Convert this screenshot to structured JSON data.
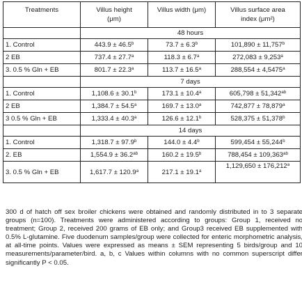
{
  "table": {
    "headers": [
      "Treatments",
      "Villus height (μm)",
      "Villus width (μm)",
      "Villus surface area index (μm²)"
    ],
    "periods": [
      {
        "label": "48 hours",
        "rows": [
          {
            "treatment": "1. Control",
            "height": "443.9 ± 46.5",
            "height_sup": "b",
            "width": "73.7 ± 6.3",
            "width_sup": "b",
            "area": "101,890 ± 11,757",
            "area_sup": "b"
          },
          {
            "treatment": "2 EB",
            "height": "737.4 ± 27.7",
            "height_sup": "a",
            "width": "118.3 ± 6.7",
            "width_sup": "a",
            "area": "272,083 ± 9,253",
            "area_sup": "a"
          },
          {
            "treatment": "3. 0.5 % Gln + EB",
            "height": "801.7 ± 22.3",
            "height_sup": "a",
            "width": "113.7 ± 16.5",
            "width_sup": "a",
            "area": "288,554 ± 4,5475",
            "area_sup": "a"
          }
        ]
      },
      {
        "label": "7 days",
        "rows": [
          {
            "treatment": "1. Control",
            "height": "1,108.6 ± 30.1",
            "height_sup": "b",
            "width": "173.1 ± 10.4",
            "width_sup": "a",
            "area": "605,798 ± 51,342",
            "area_sup": "ab"
          },
          {
            "treatment": "2 EB",
            "height": "1,384.7 ± 54.5",
            "height_sup": "a",
            "width": "169.7 ± 13.0",
            "width_sup": "a",
            "area": "742,877 ± 78,879",
            "area_sup": "a"
          },
          {
            "treatment": "3 0.5 % Gln + EB",
            "height": "1,333.4 ± 40.3",
            "height_sup": "a",
            "width": "126.6 ± 12.1",
            "width_sup": "b",
            "area": "528,375 ± 51,378",
            "area_sup": "b"
          }
        ]
      },
      {
        "label": "14 days",
        "rows": [
          {
            "treatment": "1. Control",
            "height": "1,318.7 ± 97.9",
            "height_sup": "b",
            "width": "144.0 ± 4.4",
            "width_sup": "b",
            "area": "599,454 ± 55,244",
            "area_sup": "b"
          },
          {
            "treatment": "2. EB",
            "height": "1,554.9 ± 36.2",
            "height_sup": "ab",
            "width": "160.2 ± 19.5",
            "width_sup": "b",
            "area": "788,454 ± 109,363",
            "area_sup": "ab"
          },
          {
            "treatment": "3. 0.5 % Gln + EB",
            "height": "1,617.7 ± 120.9",
            "height_sup": "a",
            "width": "217.1 ± 19.1",
            "width_sup": "a",
            "area": "1,129,650 ± 176,212",
            "area_sup": "a"
          }
        ]
      }
    ]
  },
  "note": "300 d of hatch off sex broiler chickens were obtained and randomly distributed in to 3 separate groups (n=100). Treatments were administered according to groups: Group 1, received no treatment; Group 2, received 200 grams of EB only; and Group3 received EB supplemented with 0.5% L-glutamine. Five duodenum samples/group were collected for enteric morphometric analysis, at all-time points. Values were expressed as means ± SEM representing 5 birds/group and 10 measurements/parameter/bird. a, b, c Values within columns with no common superscript differ significantly P < 0.05."
}
